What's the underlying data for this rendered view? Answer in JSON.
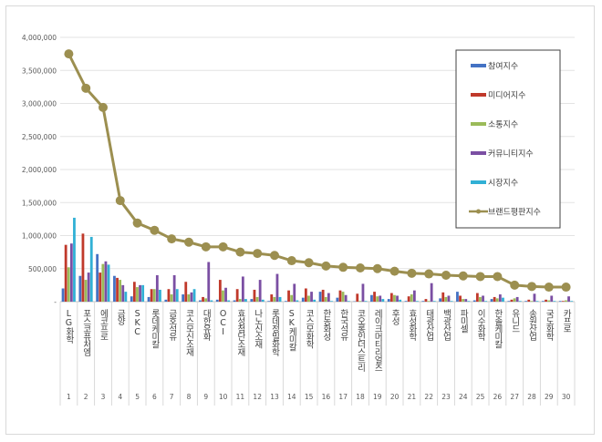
{
  "chart_data": {
    "type": "bar",
    "title": "",
    "xlabel": "",
    "ylabel": "",
    "ylim": [
      0,
      4000000
    ],
    "yticks": [
      "-",
      "500,000",
      "1,000,000",
      "1,500,000",
      "2,000,000",
      "2,500,000",
      "3,000,000",
      "3,500,000",
      "4,000,000"
    ],
    "grid": true,
    "legend_position": "right",
    "ranks": [
      "1",
      "2",
      "3",
      "4",
      "5",
      "6",
      "7",
      "8",
      "9",
      "10",
      "11",
      "12",
      "13",
      "14",
      "15",
      "16",
      "17",
      "18",
      "19",
      "20",
      "21",
      "22",
      "23",
      "24",
      "25",
      "26",
      "27",
      "28",
      "29",
      "30"
    ],
    "categories": [
      "LG화학",
      "포스코퓨처엠",
      "에코프로",
      "금양",
      "SKC",
      "롯데케미칼",
      "금호석유",
      "코스모신소재",
      "대한유화",
      "OCI",
      "효성첨단소재",
      "나노신소재",
      "롯데정밀화학",
      "SK케미칼",
      "코스모화학",
      "한농화성",
      "한국석유",
      "코오롱인더스트리",
      "레이크머티리얼즈",
      "후성",
      "효성화학",
      "태광산업",
      "백광산업",
      "파미셀",
      "이수화학",
      "한솔케미칼",
      "유니드",
      "송원산업",
      "국도화학",
      "카프로"
    ],
    "series": [
      {
        "name": "참여지수",
        "type": "bar",
        "color": "#4472c4",
        "values": [
          200000,
          390000,
          720000,
          390000,
          80000,
          70000,
          30000,
          110000,
          20000,
          30000,
          20000,
          40000,
          10000,
          10000,
          60000,
          150000,
          60000,
          5000,
          100000,
          40000,
          10000,
          10000,
          50000,
          150000,
          20000,
          40000,
          10000,
          10000,
          10000,
          10000
        ]
      },
      {
        "name": "미디어지수",
        "type": "bar",
        "color": "#c0392b",
        "values": [
          860000,
          1030000,
          440000,
          360000,
          300000,
          190000,
          190000,
          300000,
          70000,
          330000,
          190000,
          180000,
          110000,
          170000,
          200000,
          180000,
          170000,
          120000,
          150000,
          130000,
          80000,
          40000,
          140000,
          90000,
          130000,
          70000,
          30000,
          30000,
          30000,
          10000
        ]
      },
      {
        "name": "소통지수",
        "type": "bar",
        "color": "#9bbb59",
        "values": [
          520000,
          330000,
          570000,
          330000,
          220000,
          190000,
          110000,
          110000,
          50000,
          170000,
          40000,
          70000,
          70000,
          100000,
          90000,
          70000,
          150000,
          10000,
          80000,
          100000,
          110000,
          10000,
          70000,
          40000,
          70000,
          50000,
          50000,
          10000,
          20000,
          20000
        ]
      },
      {
        "name": "커뮤니티지수",
        "type": "bar",
        "color": "#7b4fa3",
        "values": [
          880000,
          440000,
          610000,
          250000,
          250000,
          400000,
          400000,
          140000,
          600000,
          210000,
          380000,
          330000,
          420000,
          270000,
          150000,
          130000,
          100000,
          270000,
          90000,
          90000,
          170000,
          280000,
          90000,
          40000,
          90000,
          110000,
          70000,
          120000,
          90000,
          80000
        ]
      },
      {
        "name": "시장지수",
        "type": "bar",
        "color": "#31b0d5",
        "values": [
          1270000,
          980000,
          560000,
          150000,
          250000,
          180000,
          190000,
          190000,
          20000,
          20000,
          40000,
          30000,
          70000,
          20000,
          30000,
          10000,
          10000,
          10000,
          40000,
          30000,
          10000,
          10000,
          10000,
          10000,
          10000,
          60000,
          10000,
          10000,
          10000,
          10000
        ]
      },
      {
        "name": "브랜드평판지수",
        "type": "line",
        "color": "#9c8f50",
        "values": [
          3750000,
          3230000,
          2940000,
          1530000,
          1190000,
          1080000,
          950000,
          900000,
          830000,
          830000,
          750000,
          730000,
          700000,
          620000,
          590000,
          540000,
          520000,
          510000,
          500000,
          460000,
          430000,
          420000,
          400000,
          390000,
          380000,
          380000,
          250000,
          230000,
          220000,
          220000
        ]
      }
    ]
  }
}
